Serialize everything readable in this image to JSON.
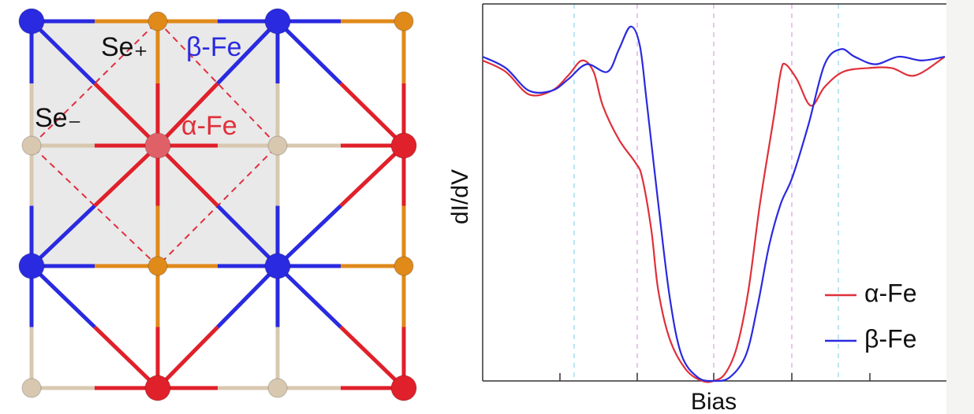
{
  "diagram": {
    "labels": [
      "Se₊",
      "β-Fe",
      "Se₋",
      "α-Fe"
    ]
  },
  "chart_data": {
    "type": "line",
    "x_label": "Bias",
    "y_label": "dI/dV",
    "xlim": [
      -1,
      1
    ],
    "ylim": [
      0,
      1
    ],
    "legend": "lower right",
    "series": [
      {
        "name": "α-Fe",
        "color": "#e0303a",
        "x": [
          -1.0,
          -0.9,
          -0.8,
          -0.7,
          -0.63,
          -0.57,
          -0.52,
          -0.48,
          -0.41,
          -0.34,
          -0.31,
          -0.27,
          -0.24,
          -0.19,
          -0.12,
          -0.05,
          0,
          0.05,
          0.1,
          0.15,
          0.2,
          0.26,
          0.29,
          0.31,
          0.36,
          0.42,
          0.48,
          0.56,
          0.67,
          0.77,
          0.87,
          1.0
        ],
        "values": [
          0.85,
          0.82,
          0.76,
          0.77,
          0.81,
          0.85,
          0.82,
          0.73,
          0.64,
          0.58,
          0.54,
          0.4,
          0.24,
          0.11,
          0.03,
          0,
          0,
          0.02,
          0.09,
          0.24,
          0.47,
          0.7,
          0.82,
          0.84,
          0.8,
          0.73,
          0.78,
          0.82,
          0.83,
          0.83,
          0.81,
          0.86
        ]
      },
      {
        "name": "β-Fe",
        "color": "#2a2ae0",
        "x": [
          -1.0,
          -0.9,
          -0.8,
          -0.7,
          -0.63,
          -0.55,
          -0.46,
          -0.41,
          -0.36,
          -0.32,
          -0.29,
          -0.24,
          -0.19,
          -0.14,
          -0.07,
          0,
          0.07,
          0.14,
          0.19,
          0.24,
          0.29,
          0.34,
          0.41,
          0.48,
          0.55,
          0.61,
          0.7,
          0.8,
          0.9,
          1.0
        ],
        "values": [
          0.86,
          0.83,
          0.77,
          0.77,
          0.8,
          0.84,
          0.82,
          0.88,
          0.94,
          0.89,
          0.74,
          0.47,
          0.22,
          0.07,
          0.01,
          0,
          0.01,
          0.07,
          0.2,
          0.36,
          0.47,
          0.54,
          0.68,
          0.84,
          0.88,
          0.86,
          0.84,
          0.86,
          0.85,
          0.86
        ]
      }
    ]
  }
}
